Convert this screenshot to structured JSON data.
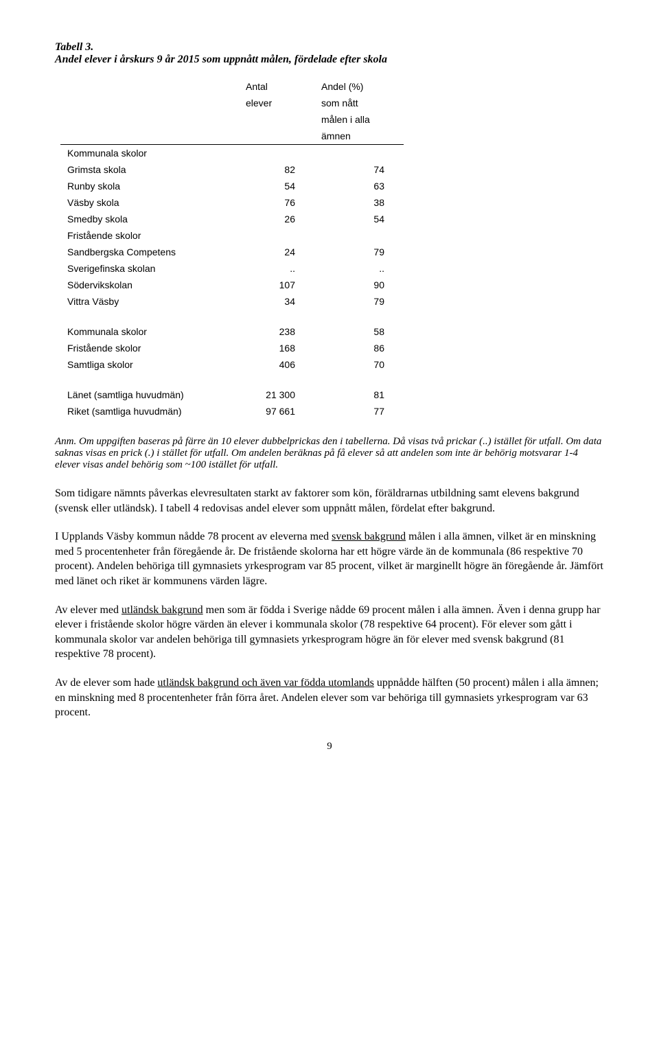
{
  "title": {
    "line1": "Tabell 3.",
    "line2": "Andel elever i årskurs 9 år 2015 som uppnått målen, fördelade efter skola"
  },
  "table": {
    "header": {
      "col1_r1": "Antal",
      "col1_r2": "elever",
      "col2_r1": "Andel (%)",
      "col2_r2": "som nått",
      "col2_r3": "målen i alla",
      "col2_r4": "ämnen"
    },
    "sections": [
      {
        "heading": "Kommunala skolor",
        "rows": [
          {
            "label": "Grimsta skola",
            "v1": "82",
            "v2": "74"
          },
          {
            "label": "Runby skola",
            "v1": "54",
            "v2": "63"
          },
          {
            "label": "Väsby skola",
            "v1": "76",
            "v2": "38"
          },
          {
            "label": "Smedby skola",
            "v1": "26",
            "v2": "54"
          }
        ]
      },
      {
        "heading": "Fristående skolor",
        "rows": [
          {
            "label": "Sandbergska Competens",
            "v1": "24",
            "v2": "79"
          },
          {
            "label": "Sverigefinska skolan",
            "v1": "..",
            "v2": ".."
          },
          {
            "label": "Södervikskolan",
            "v1": "107",
            "v2": "90"
          },
          {
            "label": "Vittra Väsby",
            "v1": "34",
            "v2": "79"
          }
        ]
      },
      {
        "heading": "",
        "rows": [
          {
            "label": "Kommunala skolor",
            "v1": "238",
            "v2": "58"
          },
          {
            "label": "Fristående skolor",
            "v1": "168",
            "v2": "86"
          },
          {
            "label": "Samtliga skolor",
            "v1": "406",
            "v2": "70"
          }
        ]
      },
      {
        "heading": "",
        "rows": [
          {
            "label": "Länet (samtliga huvudmän)",
            "v1": "21 300",
            "v2": "81"
          },
          {
            "label": "Riket (samtliga huvudmän)",
            "v1": "97 661",
            "v2": "77"
          }
        ]
      }
    ]
  },
  "footnote": "Anm. Om uppgiften baseras på färre än 10 elever dubbelprickas den i tabellerna. Då visas två prickar (..) istället för utfall. Om data saknas visas en prick (.) i stället för utfall. Om andelen beräknas på få elever så att andelen som inte är behörig motsvarar 1-4 elever visas andel behörig som ~100 istället för utfall.",
  "paras": {
    "p1": "Som tidigare nämnts påverkas elevresultaten starkt av faktorer som kön, föräldrarnas utbildning samt elevens bakgrund (svensk eller utländsk). I tabell 4 redovisas andel elever som uppnått målen, fördelat efter bakgrund.",
    "p2a": "I Upplands Väsby kommun nådde 78 procent av eleverna med ",
    "p2u": "svensk bakgrund",
    "p2b": " målen i alla ämnen, vilket är en minskning med 5 procentenheter från föregående år. De fristående skolorna har ett högre värde än de kommunala (86 respektive 70 procent). Andelen behöriga till gymnasiets yrkesprogram var 85 procent, vilket är marginellt högre än föregående år. Jämfört med länet och riket är kommunens värden lägre.",
    "p3a": "Av elever med ",
    "p3u": "utländsk bakgrund",
    "p3b": " men som är födda i Sverige nådde 69 procent målen i alla ämnen. Även i denna grupp har elever i fristående skolor högre värden än elever i kommunala skolor (78 respektive 64 procent). För elever som gått i kommunala skolor var andelen behöriga till gymnasiets yrkesprogram högre än för elever med svensk bakgrund (81 respektive 78 procent).",
    "p4a": "Av de elever som hade ",
    "p4u": "utländsk bakgrund och även var födda utomlands",
    "p4b": " uppnådde hälften (50 procent) målen i alla ämnen; en minskning med 8 procentenheter från förra året. Andelen elever som var behöriga till gymnasiets yrkesprogram var 63 procent."
  },
  "pagenum": "9"
}
